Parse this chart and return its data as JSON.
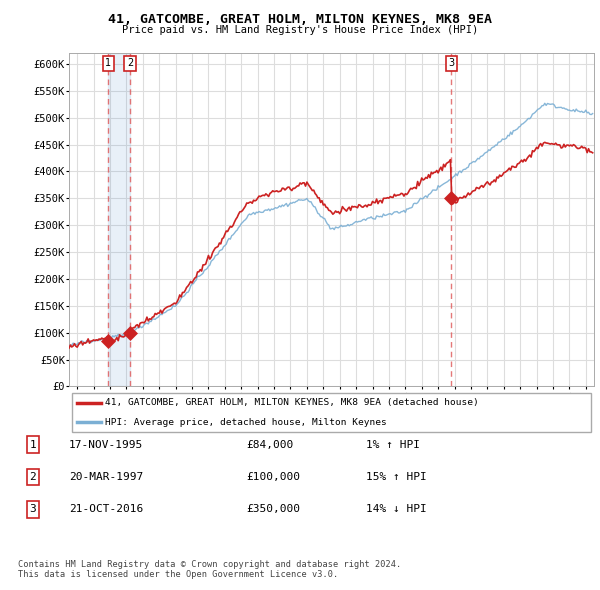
{
  "title": "41, GATCOMBE, GREAT HOLM, MILTON KEYNES, MK8 9EA",
  "subtitle": "Price paid vs. HM Land Registry's House Price Index (HPI)",
  "ylabel_ticks": [
    "£0",
    "£50K",
    "£100K",
    "£150K",
    "£200K",
    "£250K",
    "£300K",
    "£350K",
    "£400K",
    "£450K",
    "£500K",
    "£550K",
    "£600K"
  ],
  "ytick_values": [
    0,
    50000,
    100000,
    150000,
    200000,
    250000,
    300000,
    350000,
    400000,
    450000,
    500000,
    550000,
    600000
  ],
  "transactions": [
    {
      "date_num": 1995.88,
      "price": 84000,
      "label": "1"
    },
    {
      "date_num": 1997.22,
      "price": 100000,
      "label": "2"
    },
    {
      "date_num": 2016.8,
      "price": 350000,
      "label": "3"
    }
  ],
  "vline_dates": [
    1995.88,
    1997.22,
    2016.8
  ],
  "legend_entries": [
    "41, GATCOMBE, GREAT HOLM, MILTON KEYNES, MK8 9EA (detached house)",
    "HPI: Average price, detached house, Milton Keynes"
  ],
  "table_data": [
    [
      "1",
      "17-NOV-1995",
      "£84,000",
      "1% ↑ HPI"
    ],
    [
      "2",
      "20-MAR-1997",
      "£100,000",
      "15% ↑ HPI"
    ],
    [
      "3",
      "21-OCT-2016",
      "£350,000",
      "14% ↓ HPI"
    ]
  ],
  "footnote": "Contains HM Land Registry data © Crown copyright and database right 2024.\nThis data is licensed under the Open Government Licence v3.0.",
  "hpi_color": "#7bafd4",
  "price_color": "#cc2222",
  "vline_color": "#e06060",
  "background_color": "#ffffff",
  "plot_bg_color": "#ffffff",
  "grid_color": "#dddddd",
  "xmin": 1993.5,
  "xmax": 2025.5,
  "ymin": 0,
  "ymax": 620000
}
